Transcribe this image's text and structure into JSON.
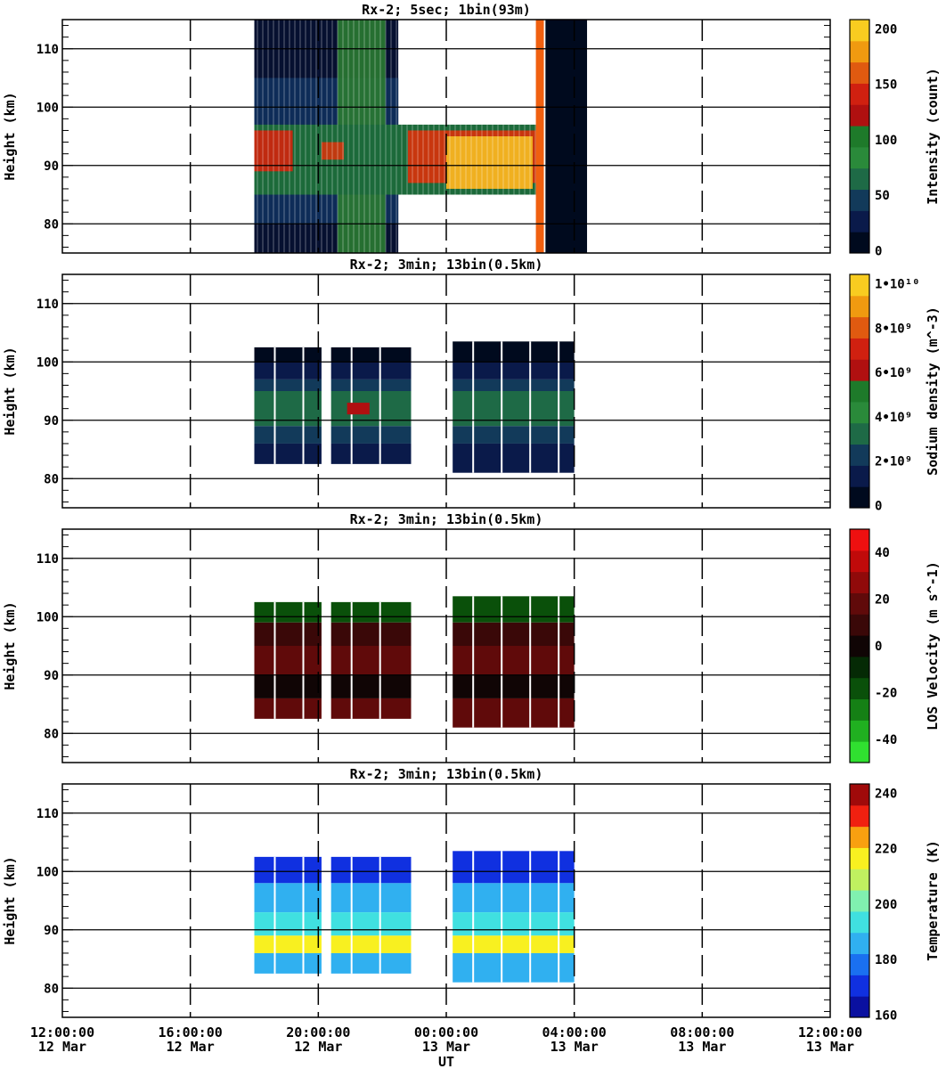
{
  "figure": {
    "x_axis_label": "UT",
    "x_ticks": [
      {
        "time": "12:00:00",
        "date": "12 Mar"
      },
      {
        "time": "16:00:00",
        "date": "12 Mar"
      },
      {
        "time": "20:00:00",
        "date": "12 Mar"
      },
      {
        "time": "00:00:00",
        "date": "13 Mar"
      },
      {
        "time": "04:00:00",
        "date": "13 Mar"
      },
      {
        "time": "08:00:00",
        "date": "13 Mar"
      },
      {
        "time": "12:00:00",
        "date": "13 Mar"
      }
    ]
  },
  "chart_data": [
    {
      "type": "heatmap",
      "title": "Rx-2;  5sec; 1bin(93m)",
      "ylabel": "Height (km)",
      "colorbar_label": "Intensity (count)",
      "colorbar_ticks": [
        "0",
        "50",
        "100",
        "150",
        "200"
      ],
      "colorbar_range": [
        0,
        200
      ],
      "colors": [
        "#000a1e",
        "#0a1a4a",
        "#123a5a",
        "#1e6a46",
        "#2a8a3a",
        "#1e7a2a",
        "#b01010",
        "#d02010",
        "#e05a10",
        "#f09a10",
        "#f8cc20"
      ],
      "xlim_hours_ut_since_12mar_12UT": [
        0,
        24
      ],
      "ylim": [
        75,
        115
      ],
      "y_ticks": [
        80,
        90,
        100,
        110
      ],
      "data_coverage_hours": [
        6,
        10.5
      ],
      "layer_peak_km": 92
    },
    {
      "type": "heatmap",
      "title": "Rx-2; 3min; 13bin(0.5km)",
      "ylabel": "Height (km)",
      "colorbar_label": "Sodium density (m^-3)",
      "colorbar_ticks": [
        "0",
        "2•10⁹",
        "4•10⁹",
        "6•10⁹",
        "8•10⁹",
        "1•10¹⁰"
      ],
      "colorbar_range": [
        0,
        10000000000
      ],
      "colors": [
        "#000a1e",
        "#0a1a4a",
        "#123a5a",
        "#1e6a46",
        "#2a8a3a",
        "#1e7a2a",
        "#b01010",
        "#d02010",
        "#e05a10",
        "#f09a10",
        "#f8cc20"
      ],
      "ylim": [
        75,
        115
      ],
      "y_ticks": [
        80,
        90,
        100,
        110
      ],
      "data_segments_hours": [
        [
          6,
          8.1
        ],
        [
          8.4,
          10.9
        ],
        [
          12.2,
          16
        ]
      ]
    },
    {
      "type": "heatmap",
      "title": "Rx-2; 3min; 13bin(0.5km)",
      "ylabel": "Height (km)",
      "colorbar_label": "LOS Velocity (m s^-1)",
      "colorbar_ticks": [
        "40",
        "20",
        "0",
        "-20",
        "-40"
      ],
      "colorbar_range": [
        -50,
        50
      ],
      "colors": [
        "#30e030",
        "#20b020",
        "#158015",
        "#0a500a",
        "#052a05",
        "#100505",
        "#3a0808",
        "#600a0a",
        "#900a0a",
        "#c00a0a",
        "#ee1010"
      ],
      "ylim": [
        75,
        115
      ],
      "y_ticks": [
        80,
        90,
        100,
        110
      ],
      "data_segments_hours": [
        [
          6,
          8.1
        ],
        [
          8.4,
          10.9
        ],
        [
          12.2,
          16
        ]
      ]
    },
    {
      "type": "heatmap",
      "title": "Rx-2; 3min; 13bin(0.5km)",
      "ylabel": "Height (km)",
      "colorbar_label": "Temperature (K)",
      "colorbar_ticks": [
        "160",
        "180",
        "200",
        "220",
        "240"
      ],
      "colorbar_range": [
        150,
        250
      ],
      "colors": [
        "#0a10a0",
        "#1030e0",
        "#1a70f0",
        "#30b0f0",
        "#40e0e0",
        "#80f0b0",
        "#c0f060",
        "#f8f020",
        "#f8a010",
        "#f02010",
        "#a00a0a"
      ],
      "ylim": [
        75,
        115
      ],
      "y_ticks": [
        80,
        90,
        100,
        110
      ],
      "data_segments_hours": [
        [
          6,
          8.1
        ],
        [
          8.4,
          10.9
        ],
        [
          12.2,
          16
        ]
      ]
    }
  ]
}
